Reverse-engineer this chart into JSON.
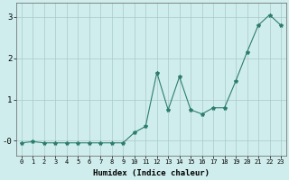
{
  "x": [
    0,
    1,
    2,
    3,
    4,
    5,
    6,
    7,
    8,
    9,
    10,
    11,
    12,
    13,
    14,
    15,
    16,
    17,
    18,
    19,
    20,
    21,
    22,
    23
  ],
  "y": [
    -0.05,
    -0.02,
    -0.05,
    -0.05,
    -0.05,
    -0.05,
    -0.05,
    -0.05,
    -0.05,
    -0.05,
    0.2,
    0.35,
    1.65,
    0.75,
    1.55,
    0.75,
    0.65,
    0.8,
    0.8,
    1.45,
    2.15,
    2.8,
    3.05,
    2.8
  ],
  "xlabel": "Humidex (Indice chaleur)",
  "ylabel": "",
  "title": "",
  "line_color": "#2d7d6d",
  "marker": "*",
  "marker_size": 3,
  "bg_color": "#d0eded",
  "grid_color": "#a8c8c8",
  "xlim": [
    -0.5,
    23.5
  ],
  "ylim": [
    -0.35,
    3.35
  ],
  "yticks": [
    0,
    1,
    2,
    3
  ],
  "ytick_labels": [
    "-0",
    "1",
    "2",
    "3"
  ],
  "xtick_labels": [
    "0",
    "1",
    "2",
    "3",
    "4",
    "5",
    "6",
    "7",
    "8",
    "9",
    "10",
    "11",
    "12",
    "13",
    "14",
    "15",
    "16",
    "17",
    "18",
    "19",
    "20",
    "21",
    "22",
    "23"
  ]
}
